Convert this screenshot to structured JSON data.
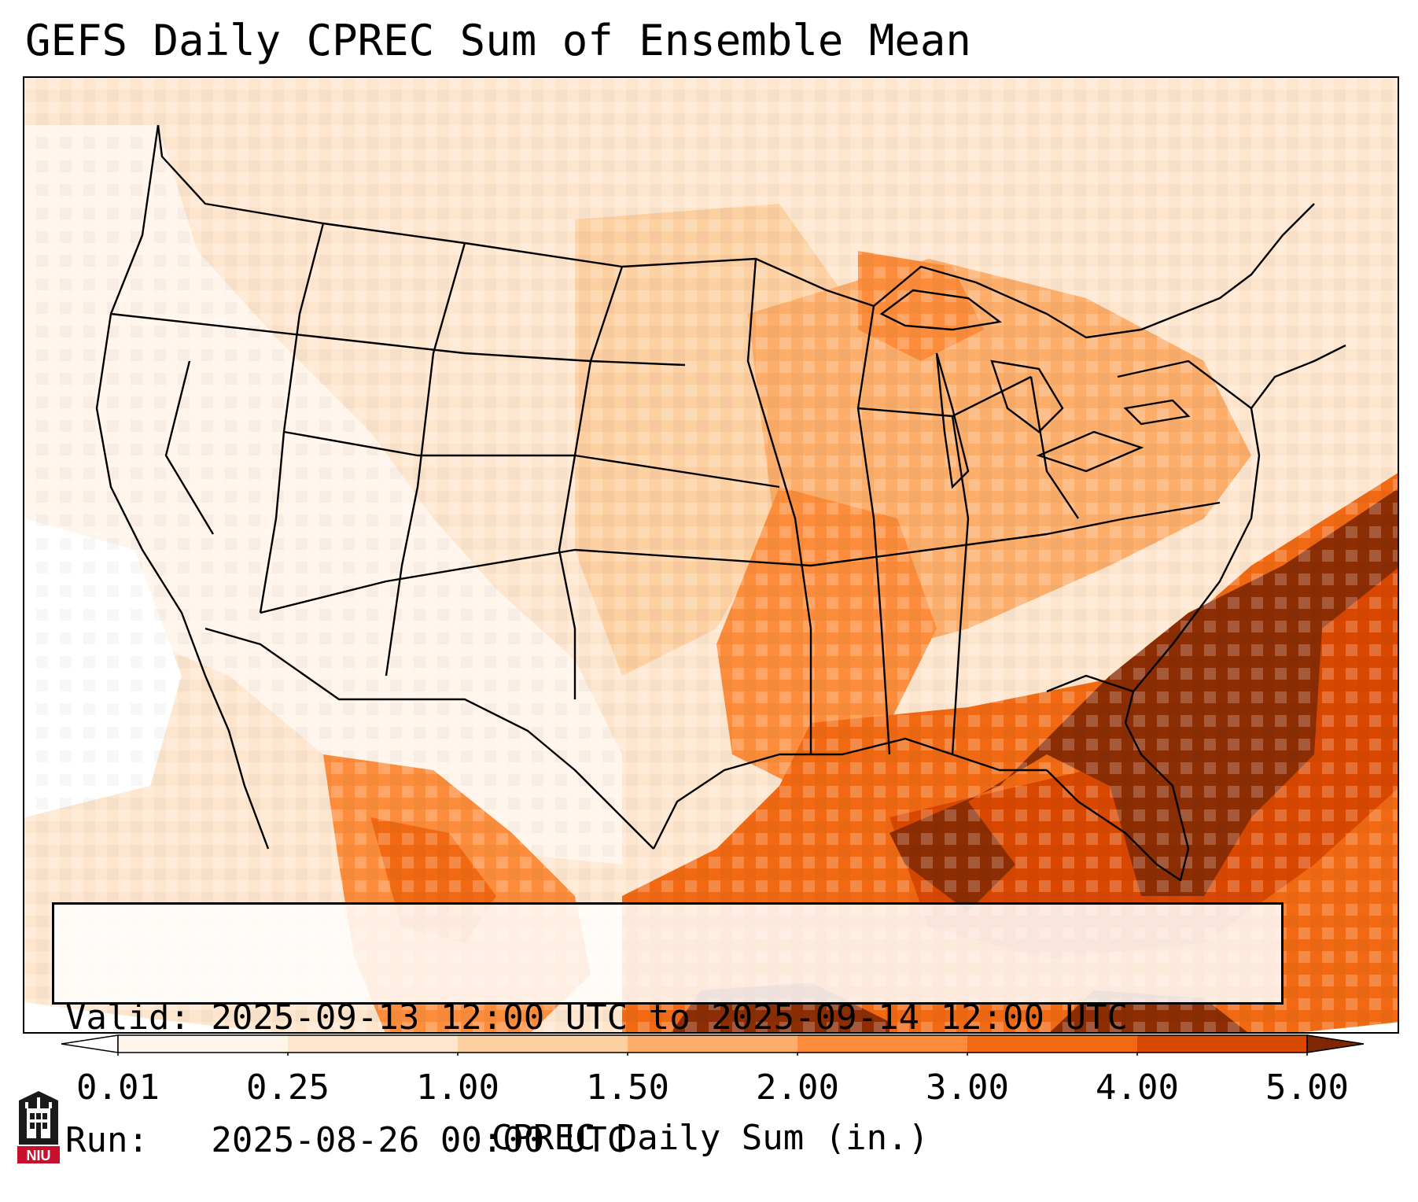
{
  "title": "GEFS Daily CPREC Sum of Ensemble Mean",
  "info": {
    "valid_line": "Valid: 2025-09-13 12:00 UTC to 2025-09-14 12:00 UTC",
    "run_line": "Run:   2025-08-26 00:00 UTC"
  },
  "colorbar": {
    "label": "CPREC Daily Sum (in.)",
    "ticks": [
      "0.01",
      "0.25",
      "1.00",
      "1.50",
      "2.00",
      "3.00",
      "4.00",
      "5.00"
    ],
    "colors": [
      "#fff5eb",
      "#fee6ce",
      "#fdd0a2",
      "#fdae6b",
      "#fd8d3c",
      "#f16913",
      "#d94801",
      "#8c2d04"
    ],
    "under_color": "#ffffff",
    "over_color": "#7f2704",
    "extend": "both"
  },
  "logo": {
    "text": "NIU",
    "icon": "niu-castle-logo-icon",
    "colors": {
      "bg": "#1a1a1a",
      "accent": "#c8102e"
    }
  }
}
